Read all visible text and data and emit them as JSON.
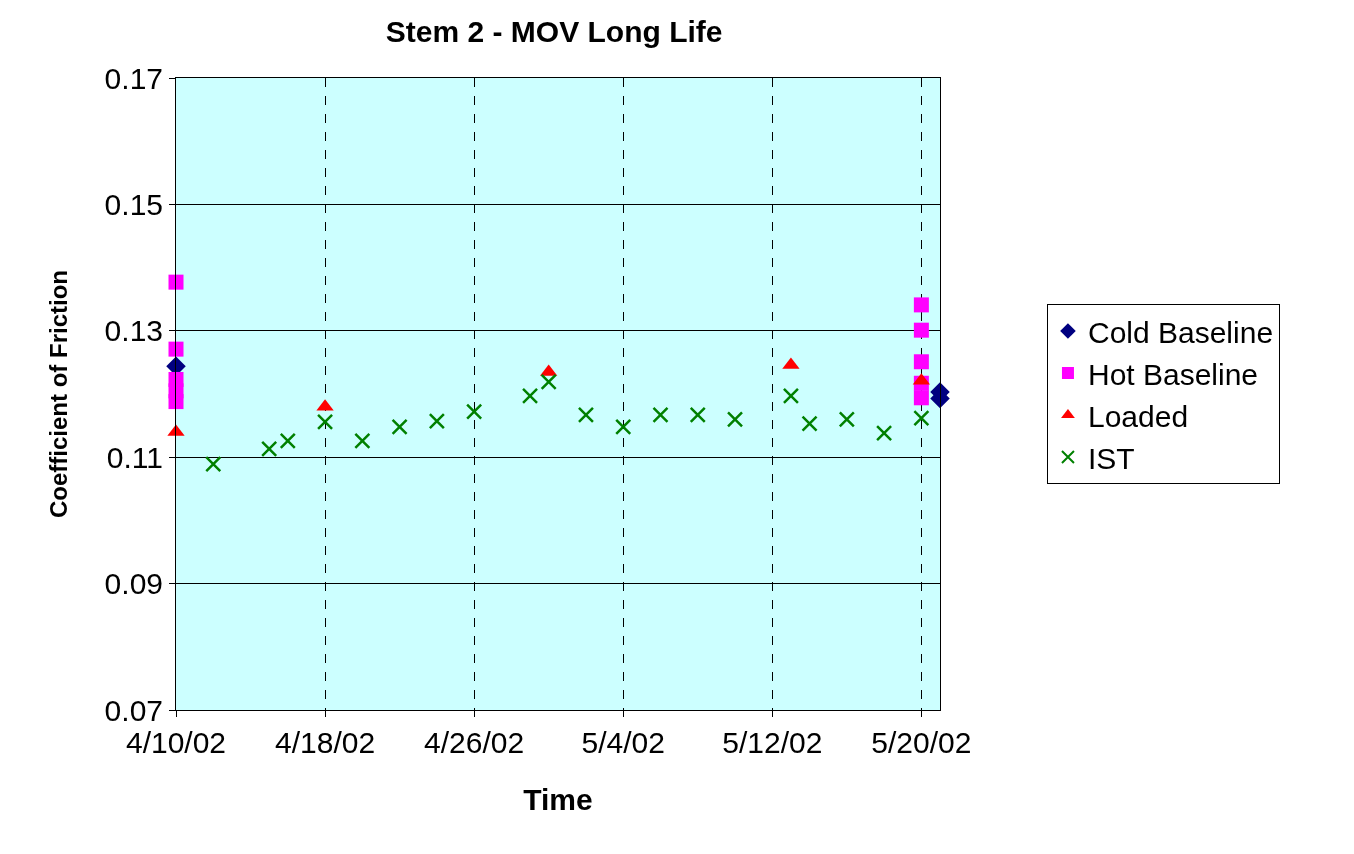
{
  "chart_data": {
    "type": "scatter",
    "title": "Stem 2 - MOV Long Life",
    "xlabel": "Time",
    "ylabel": "Coefficient of Friction",
    "series": [
      {
        "name": "Cold Baseline",
        "color": "#000080",
        "marker": "diamond",
        "x": [
          "--04-10",
          "--05-21",
          "--05-21"
        ],
        "values": [
          0.1244,
          0.1203,
          0.1193
        ]
      },
      {
        "name": "Hot Baseline",
        "color": "#ff00ff",
        "marker": "square",
        "x": [
          "--04-10",
          "--04-10",
          "--04-10",
          "--04-10",
          "--04-10",
          "--05-20",
          "--05-20",
          "--05-20",
          "--05-20",
          "--05-20"
        ],
        "values": [
          0.1377,
          0.1271,
          0.1223,
          0.1205,
          0.1188,
          0.1341,
          0.1301,
          0.1251,
          0.1217,
          0.1194
        ]
      },
      {
        "name": "Loaded",
        "color": "#ff0000",
        "marker": "triangle",
        "x": [
          "--04-10",
          "--04-18",
          "--04-30",
          "--05-13",
          "--05-20"
        ],
        "values": [
          0.114,
          0.118,
          0.1235,
          0.1246,
          0.1221
        ]
      },
      {
        "name": "IST",
        "color": "#008000",
        "marker": "cross",
        "x": [
          "--04-12",
          "--04-15",
          "--04-16",
          "--04-18",
          "--04-20",
          "--04-22",
          "--04-24",
          "--04-26",
          "--04-29",
          "--04-30",
          "--05-02",
          "--05-04",
          "--05-06",
          "--05-08",
          "--05-10",
          "--05-13",
          "--05-14",
          "--05-16",
          "--05-18",
          "--05-20"
        ],
        "values": [
          0.1089,
          0.1113,
          0.1126,
          0.1156,
          0.1126,
          0.1148,
          0.1157,
          0.1172,
          0.1197,
          0.1219,
          0.1167,
          0.1148,
          0.1167,
          0.1167,
          0.116,
          0.1197,
          0.1153,
          0.116,
          0.1138,
          0.1162
        ]
      }
    ],
    "xlim": [
      "--04-10",
      "--05-21"
    ],
    "xticks": [
      {
        "value": "--04-10",
        "label": "4/10/02"
      },
      {
        "value": "--04-18",
        "label": "4/18/02"
      },
      {
        "value": "--04-26",
        "label": "4/26/02"
      },
      {
        "value": "--05-04",
        "label": "5/4/02"
      },
      {
        "value": "--05-12",
        "label": "5/12/02"
      },
      {
        "value": "--05-20",
        "label": "5/20/02"
      }
    ],
    "ylim": [
      0.07,
      0.17
    ],
    "yticks": [
      {
        "value": 0.07,
        "label": "0.07"
      },
      {
        "value": 0.09,
        "label": "0.09"
      },
      {
        "value": 0.11,
        "label": "0.11"
      },
      {
        "value": 0.13,
        "label": "0.13"
      },
      {
        "value": 0.15,
        "label": "0.15"
      },
      {
        "value": 0.17,
        "label": "0.17"
      }
    ],
    "grid": true,
    "legend": "right"
  }
}
